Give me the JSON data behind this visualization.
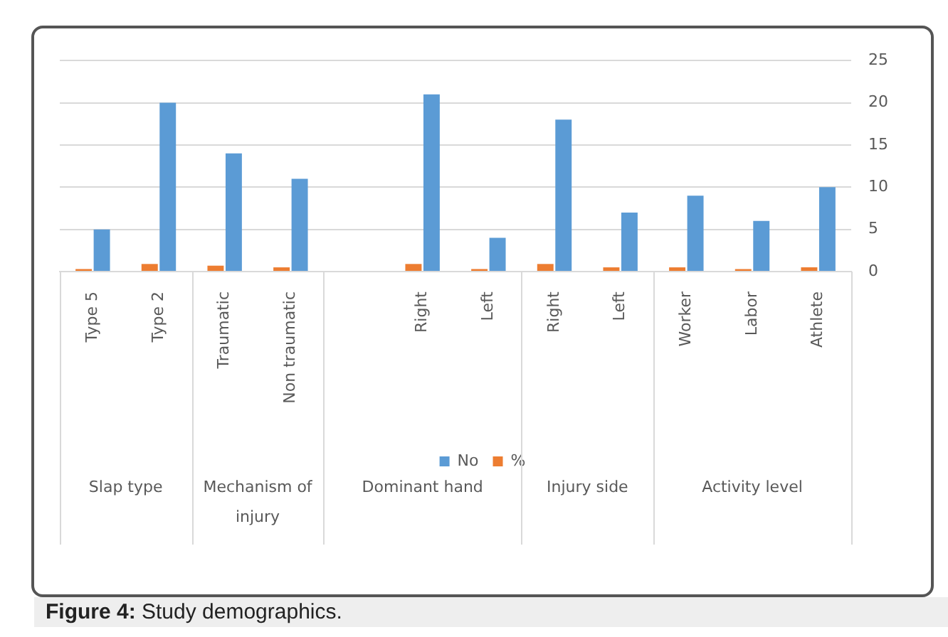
{
  "chart_data": {
    "type": "bar",
    "categories": [
      "Type 5",
      "Type 2",
      "Traumatic",
      "Non traumatic",
      null,
      "Right",
      "Left",
      "Right",
      "Left",
      "Worker",
      "Labor",
      "Athlete"
    ],
    "series": [
      {
        "name": "%",
        "color": "#ed7d31",
        "values": [
          0.3,
          0.9,
          0.7,
          0.5,
          null,
          0.9,
          0.3,
          0.9,
          0.5,
          0.5,
          0.3,
          0.5
        ]
      },
      {
        "name": "No",
        "color": "#5b9bd5",
        "values": [
          5,
          20,
          14,
          11,
          null,
          21,
          4,
          18,
          7,
          9,
          6,
          10
        ]
      }
    ],
    "ylim": [
      0,
      25
    ],
    "yticks": [
      0,
      5,
      10,
      15,
      20,
      25
    ],
    "grid": "y",
    "legend": "bottom",
    "annotations": [
      "Slap type",
      "Mechanism of injury",
      "Dominant hand",
      "Injury side",
      "Activity level",
      "Figure 4: Study demographics."
    ]
  }
}
